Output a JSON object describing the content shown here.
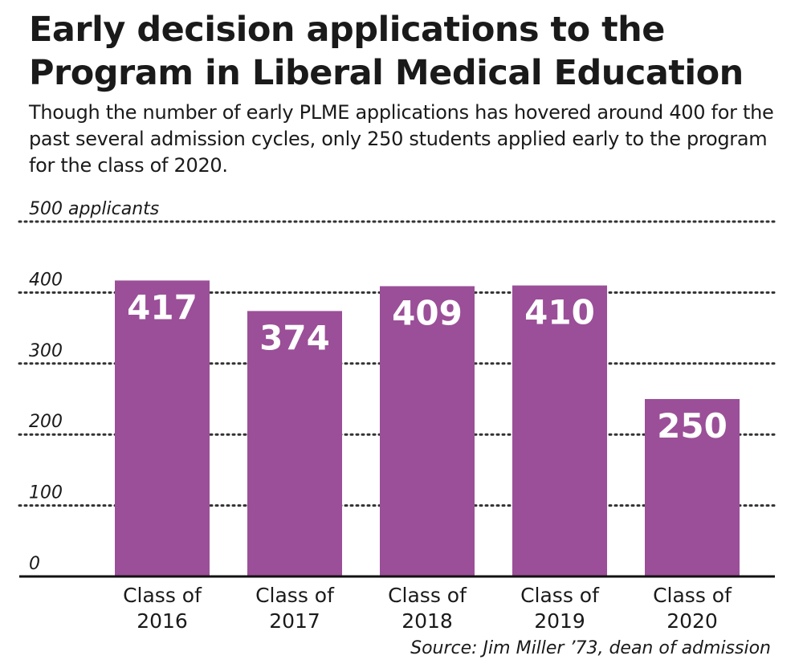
{
  "title_line1": "Early decision applications to the",
  "title_line2": "Program in Liberal Medical Education",
  "subtitle": "Though the number of early PLME applications has hovered around 400 for the past several admission cycles, only 250 students applied early to the program for the class of 2020.",
  "source": "Source: Jim Miller ’73, dean of admission",
  "colors": {
    "bar": "#9b4f98",
    "bar_label": "#ffffff",
    "grid": "#333333",
    "text": "#1a1a1a"
  },
  "chart_data": {
    "type": "bar",
    "categories": [
      [
        "Class of",
        "2016"
      ],
      [
        "Class of",
        "2017"
      ],
      [
        "Class of",
        "2018"
      ],
      [
        "Class of",
        "2019"
      ],
      [
        "Class of",
        "2020"
      ]
    ],
    "values": [
      417,
      374,
      409,
      410,
      250
    ],
    "ylim": [
      0,
      500
    ],
    "yticks": [
      0,
      100,
      200,
      300,
      400,
      500
    ],
    "ytick_labels": [
      "0",
      "100",
      "200",
      "300",
      "400",
      "500 applicants"
    ],
    "grid": "dotted horizontal"
  }
}
